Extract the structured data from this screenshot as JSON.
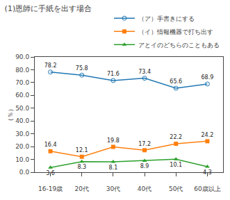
{
  "chart_data": {
    "type": "line",
    "title": "(1)恩師に手紙を出す場合",
    "categories": [
      "16-19歳",
      "20代",
      "30代",
      "40代",
      "50代",
      "60歳以上"
    ],
    "series": [
      {
        "name": "（ア）手書きにする",
        "values": [
          78.2,
          75.8,
          71.6,
          73.4,
          65.6,
          68.9
        ],
        "marker": "circle-open"
      },
      {
        "name": "（イ）情報機器で打ち出す",
        "values": [
          16.4,
          12.1,
          19.8,
          17.2,
          22.2,
          24.2
        ],
        "marker": "square"
      },
      {
        "name": "アとイのどちらのこともある",
        "values": [
          3.6,
          8.3,
          8.1,
          8.9,
          10.1,
          4.3
        ],
        "marker": "triangle-up"
      }
    ],
    "ylabel": "（％）",
    "ylim": [
      0,
      90
    ],
    "yticks": [
      {
        "value": 0,
        "label": "0.0"
      },
      {
        "value": 10,
        "label": "10.0"
      },
      {
        "value": 20,
        "label": "20.0"
      },
      {
        "value": 30,
        "label": "30.0"
      },
      {
        "value": 40,
        "label": "40.0"
      },
      {
        "value": 50,
        "label": "50.0"
      },
      {
        "value": 60,
        "label": "60.0"
      },
      {
        "value": 70,
        "label": "70.0"
      },
      {
        "value": 80,
        "label": "80.0"
      },
      {
        "value": 90,
        "label": "90.0"
      }
    ],
    "data_labels": true,
    "legend": "upper right",
    "grid": false
  }
}
